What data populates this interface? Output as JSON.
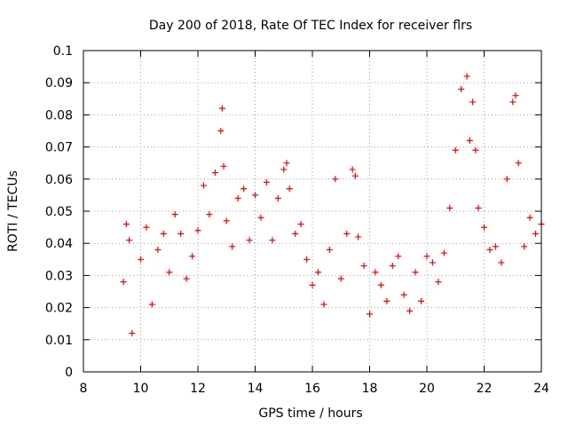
{
  "chart_data": {
    "type": "scatter",
    "title": "Day 200 of 2018, Rate Of TEC Index for receiver flrs",
    "xlabel": "GPS time / hours",
    "ylabel": "ROTI / TECUs",
    "xlim": [
      8,
      24
    ],
    "ylim": [
      0,
      0.1
    ],
    "x_ticks": [
      8,
      10,
      12,
      14,
      16,
      18,
      20,
      22,
      24
    ],
    "y_ticks": [
      0,
      0.01,
      0.02,
      0.03,
      0.04,
      0.05,
      0.06,
      0.07,
      0.08,
      0.09,
      0.1
    ],
    "x_tick_labels": [
      "8",
      "10",
      "12",
      "14",
      "16",
      "18",
      "20",
      "22",
      "24"
    ],
    "y_tick_labels": [
      "0",
      "0.01",
      "0.02",
      "0.03",
      "0.04",
      "0.05",
      "0.06",
      "0.07",
      "0.08",
      "0.09",
      "0.1"
    ],
    "grid": true,
    "marker": "plus",
    "marker_color": "#ff0000",
    "series": [
      {
        "name": "ROTI",
        "x": [
          9.4,
          9.5,
          9.6,
          9.7,
          10.0,
          10.2,
          10.4,
          10.6,
          10.8,
          11.0,
          11.2,
          11.4,
          11.6,
          11.8,
          12.0,
          12.2,
          12.4,
          12.6,
          12.8,
          12.85,
          12.9,
          13.0,
          13.2,
          13.4,
          13.6,
          13.8,
          14.0,
          14.2,
          14.4,
          14.6,
          14.8,
          15.0,
          15.1,
          15.2,
          15.4,
          15.6,
          15.8,
          16.0,
          16.2,
          16.4,
          16.6,
          16.8,
          17.0,
          17.2,
          17.4,
          17.5,
          17.6,
          17.8,
          18.0,
          18.2,
          18.4,
          18.6,
          18.8,
          19.0,
          19.2,
          19.4,
          19.6,
          19.8,
          20.0,
          20.2,
          20.4,
          20.6,
          20.8,
          21.0,
          21.2,
          21.4,
          21.5,
          21.6,
          21.7,
          21.8,
          22.0,
          22.2,
          22.4,
          22.6,
          22.8,
          23.0,
          23.1,
          23.2,
          23.4,
          23.6,
          23.8,
          24.0
        ],
        "y": [
          0.028,
          0.046,
          0.041,
          0.012,
          0.035,
          0.045,
          0.021,
          0.038,
          0.043,
          0.031,
          0.049,
          0.043,
          0.029,
          0.036,
          0.044,
          0.058,
          0.049,
          0.062,
          0.075,
          0.082,
          0.064,
          0.047,
          0.039,
          0.054,
          0.057,
          0.041,
          0.055,
          0.048,
          0.059,
          0.041,
          0.054,
          0.063,
          0.065,
          0.057,
          0.043,
          0.046,
          0.035,
          0.027,
          0.031,
          0.021,
          0.038,
          0.06,
          0.029,
          0.043,
          0.063,
          0.061,
          0.042,
          0.033,
          0.018,
          0.031,
          0.027,
          0.022,
          0.033,
          0.036,
          0.024,
          0.019,
          0.031,
          0.022,
          0.036,
          0.034,
          0.028,
          0.037,
          0.051,
          0.069,
          0.088,
          0.092,
          0.072,
          0.084,
          0.069,
          0.051,
          0.045,
          0.038,
          0.039,
          0.034,
          0.06,
          0.084,
          0.086,
          0.065,
          0.039,
          0.048,
          0.043,
          0.046
        ]
      }
    ]
  }
}
